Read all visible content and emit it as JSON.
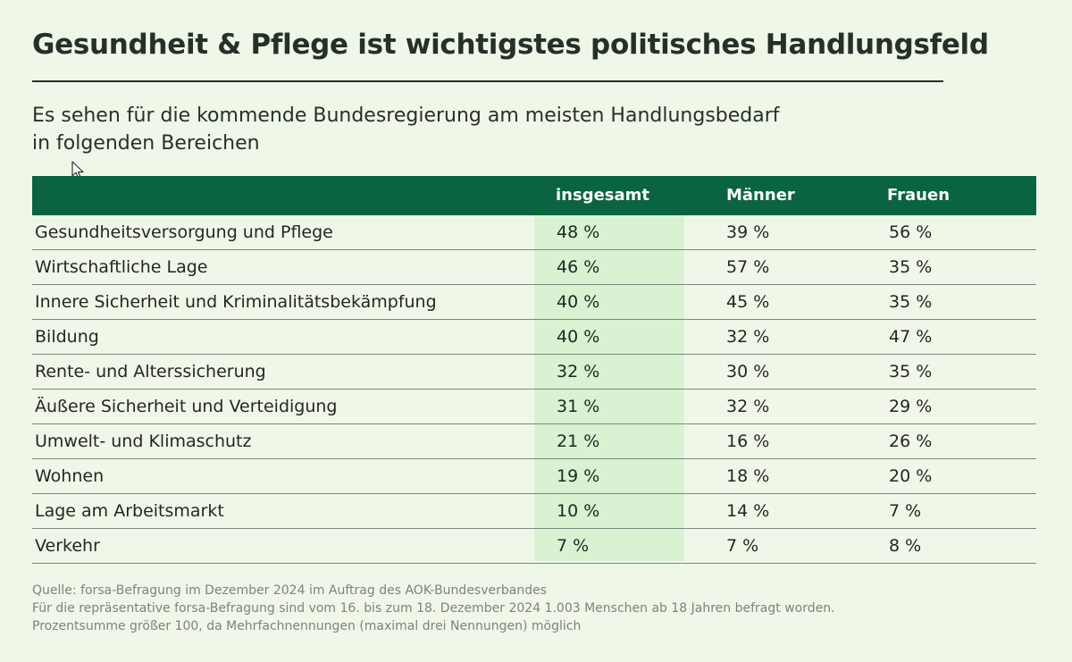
{
  "title": "Gesundheit & Pflege ist wichtigstes politisches Handlungsfeld",
  "subtitle": {
    "line1": "Es sehen für die kommende Bundesregierung am meisten Handlungsbedarf",
    "line2": "in folgenden Bereichen"
  },
  "colors": {
    "header_bg": "#0a6441",
    "highlight_column": "#d9f2d2",
    "background": "#eef7e8"
  },
  "chart_data": {
    "type": "table",
    "title": "Gesundheit & Pflege ist wichtigstes politisches Handlungsfeld",
    "columns": [
      "",
      "insgesamt",
      "Männer",
      "Frauen"
    ],
    "rows": [
      {
        "label": "Gesundheitsversorgung und Pflege",
        "insgesamt": "48 %",
        "maenner": "39 %",
        "frauen": "56 %"
      },
      {
        "label": "Wirtschaftliche Lage",
        "insgesamt": "46 %",
        "maenner": "57 %",
        "frauen": "35 %"
      },
      {
        "label": "Innere Sicherheit und Kriminalitätsbekämpfung",
        "insgesamt": "40 %",
        "maenner": "45 %",
        "frauen": "35 %"
      },
      {
        "label": "Bildung",
        "insgesamt": "40 %",
        "maenner": "32 %",
        "frauen": "47 %"
      },
      {
        "label": "Rente- und Alterssicherung",
        "insgesamt": "32 %",
        "maenner": "30 %",
        "frauen": "35 %"
      },
      {
        "label": "Äußere Sicherheit und Verteidigung",
        "insgesamt": "31 %",
        "maenner": "32 %",
        "frauen": "29 %"
      },
      {
        "label": "Umwelt- und Klimaschutz",
        "insgesamt": "21 %",
        "maenner": "16 %",
        "frauen": "26 %"
      },
      {
        "label": "Wohnen",
        "insgesamt": "19 %",
        "maenner": "18 %",
        "frauen": "20 %"
      },
      {
        "label": "Lage am Arbeitsmarkt",
        "insgesamt": "10 %",
        "maenner": "14 %",
        "frauen": "7 %"
      },
      {
        "label": "Verkehr",
        "insgesamt": "7 %",
        "maenner": "7 %",
        "frauen": "8 %"
      }
    ]
  },
  "footnote": {
    "line1": "Quelle: forsa-Befragung im Dezember 2024 im Auftrag des AOK-Bundesverbandes",
    "line2": "Für die repräsentative forsa-Befragung sind vom 16. bis zum 18. Dezember 2024 1.003 Menschen ab 18 Jahren befragt worden.",
    "line3": "Prozentsumme größer 100, da Mehrfachnennungen (maximal drei Nennungen) möglich"
  }
}
